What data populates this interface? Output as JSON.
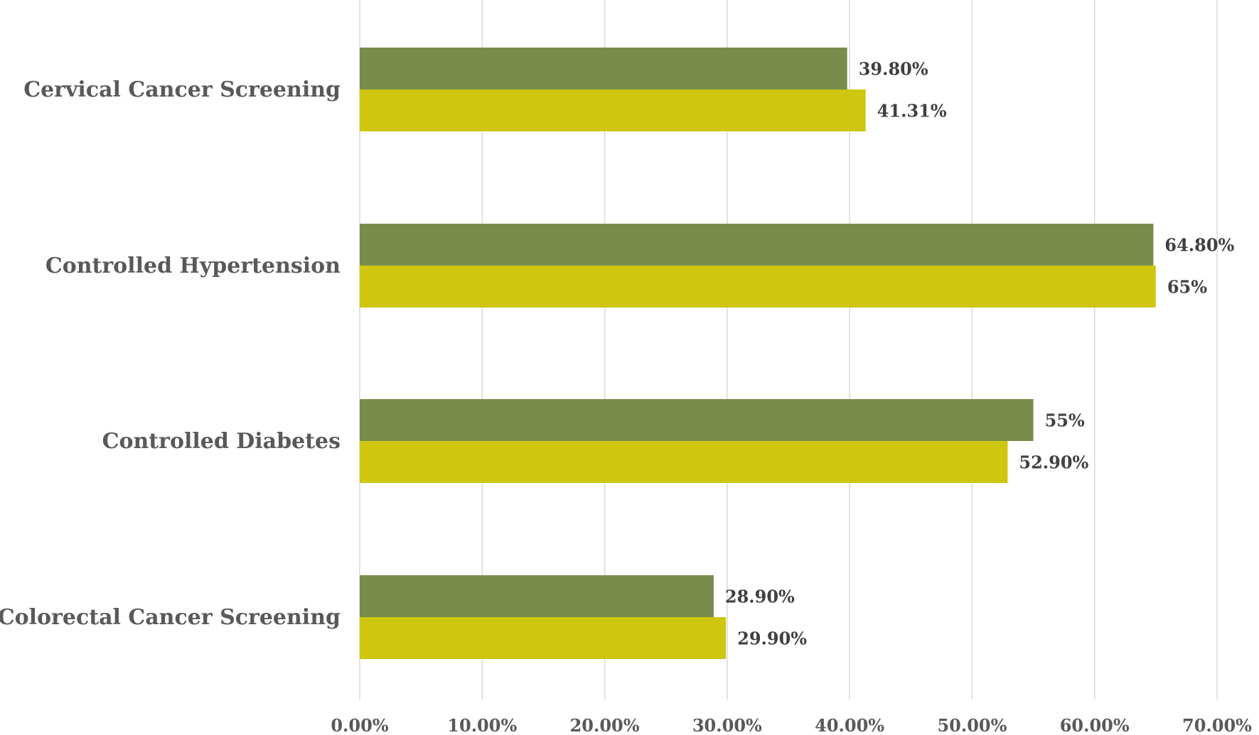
{
  "chart_data": {
    "type": "bar",
    "orientation": "horizontal",
    "categories": [
      "Cervical Cancer Screening",
      "Controlled Hypertension",
      "Controlled Diabetes",
      "Colorectal Cancer Screening"
    ],
    "series": [
      {
        "color": "#7a8c4b",
        "values": [
          39.8,
          64.8,
          55,
          28.9
        ],
        "labels": [
          "39.80%",
          "64.80%",
          "55%",
          "28.90%"
        ]
      },
      {
        "color": "#cec60f",
        "values": [
          41.31,
          65,
          52.9,
          29.9
        ],
        "labels": [
          "41.31%",
          "65%",
          "52.90%",
          "29.90%"
        ]
      }
    ],
    "xlim": [
      0,
      70
    ],
    "ticks": [
      0,
      10,
      20,
      30,
      40,
      50,
      60,
      70
    ],
    "tick_labels": [
      "0.00%",
      "10.00%",
      "20.00%",
      "30.00%",
      "40.00%",
      "50.00%",
      "60.00%",
      "70.00%"
    ],
    "grid": "vertical",
    "title": "",
    "xlabel": "",
    "ylabel": ""
  }
}
